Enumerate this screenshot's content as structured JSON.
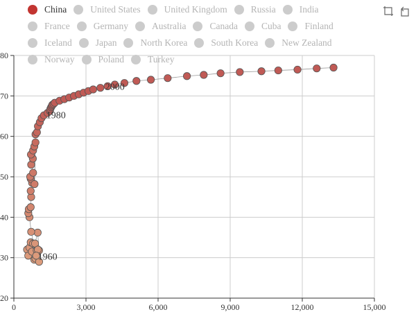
{
  "toolbox": {
    "zoom_icon": "data-zoom-icon",
    "reset_icon": "zoom-reset-icon"
  },
  "colors": {
    "selected": "#c23531",
    "unselected": "#cccccc",
    "grid": "#cccccc",
    "point_light": "#dc9c7c",
    "point_dark": "#c05a55",
    "axis": "#333333"
  },
  "chart_data": {
    "type": "scatter",
    "legend": {
      "position": "top",
      "items": [
        "China",
        "United States",
        "United Kingdom",
        "Russia",
        "India",
        "France",
        "Germany",
        "Australia",
        "Canada",
        "Cuba",
        "Finland",
        "Iceland",
        "Japan",
        "North Korea",
        "South Korea",
        "New Zealand",
        "Norway",
        "Poland",
        "Turkey"
      ],
      "selected": [
        "China"
      ]
    },
    "xlim": [
      0,
      15000
    ],
    "ylim": [
      20,
      80
    ],
    "xticks": [
      0,
      3000,
      6000,
      9000,
      12000,
      15000
    ],
    "xtick_labels": [
      "0",
      "3,000",
      "6,000",
      "9,000",
      "12,000",
      "15,000"
    ],
    "yticks": [
      20,
      30,
      40,
      50,
      60,
      70,
      80
    ],
    "ytick_labels": [
      "20",
      "30",
      "40",
      "50",
      "60",
      "70",
      "80"
    ],
    "grid": true,
    "connected_trajectory": true,
    "annotations": [
      {
        "text": "1960",
        "x": 1000,
        "y": 29.5
      },
      {
        "text": "1980",
        "x": 1350,
        "y": 64.5
      },
      {
        "text": "2000",
        "x": 3800,
        "y": 71.5
      }
    ],
    "series": [
      {
        "name": "China",
        "x": [
          550,
          600,
          650,
          700,
          750,
          800,
          850,
          900,
          950,
          1000,
          1050,
          880,
          990,
          1050,
          1000,
          930,
          720,
          650,
          600,
          620,
          700,
          720,
          700,
          760,
          700,
          680,
          800,
          720,
          790,
          710,
          800,
          850,
          900,
          860,
          900,
          960,
          1000,
          1080,
          1150,
          1250,
          1400,
          1500,
          1520,
          1550,
          1580,
          1600,
          1650,
          1700,
          1900,
          2100,
          2300,
          2500,
          2700,
          2900,
          3100,
          3300,
          3600,
          3900,
          4200,
          4600,
          5100,
          5700,
          6400,
          7200,
          7900,
          8600,
          9400,
          10300,
          11000,
          11800,
          12600,
          13300
        ],
        "y": [
          32,
          30.5,
          32.5,
          33.8,
          31.5,
          33.5,
          29.5,
          29.8,
          31.8,
          32,
          29,
          33.5,
          36.2,
          31.8,
          32,
          30.5,
          36.4,
          40,
          41,
          42,
          42.5,
          45,
          46.5,
          48.5,
          49.5,
          50,
          51,
          53,
          54.5,
          55.5,
          56.5,
          57.5,
          58.5,
          48.2,
          60.5,
          61,
          62.5,
          63.5,
          64.5,
          65.2,
          65.8,
          66.3,
          66.8,
          67.2,
          67.5,
          67.8,
          68.0,
          68.3,
          68.8,
          69.2,
          69.6,
          70.0,
          70.4,
          70.8,
          71.2,
          71.6,
          72.0,
          72.4,
          72.8,
          73.2,
          73.7,
          74.0,
          74.4,
          74.9,
          75.2,
          75.6,
          75.9,
          76.1,
          76.3,
          76.5,
          76.8,
          77.0
        ]
      }
    ]
  }
}
